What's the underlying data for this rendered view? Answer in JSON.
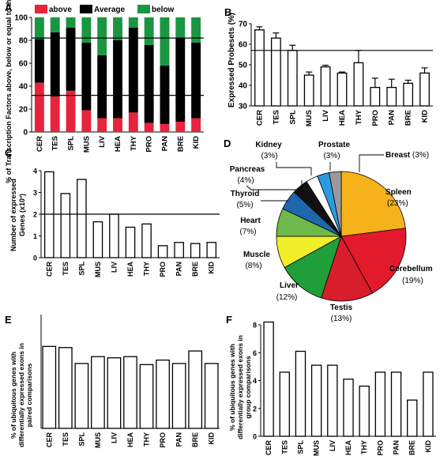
{
  "chart_data": [
    {
      "panel_letter": "A",
      "type": "bar",
      "stacked": true,
      "categories": [
        "CER",
        "TES",
        "SPL",
        "MUS",
        "LIV",
        "HEA",
        "THY",
        "PRO",
        "PAN",
        "BRE",
        "KID"
      ],
      "series": [
        {
          "name": "above",
          "color": "#e8243c",
          "values": [
            43,
            31,
            36,
            19,
            12,
            12,
            17,
            8,
            7,
            9,
            12
          ]
        },
        {
          "name": "Average",
          "color": "#000000",
          "values": [
            38,
            56,
            55,
            59,
            55,
            68,
            74,
            68,
            51,
            73,
            66
          ]
        },
        {
          "name": "below",
          "color": "#1a9641",
          "values": [
            19,
            13,
            9,
            22,
            33,
            20,
            9,
            24,
            42,
            18,
            22
          ]
        }
      ],
      "ylabel": "% of Transcription Factors above, below or equal to the average",
      "ylim": [
        0,
        100
      ],
      "yticks": [
        0,
        20,
        40,
        60,
        80,
        100
      ],
      "reference_lines": [
        82,
        32
      ],
      "legend_position": "top"
    },
    {
      "panel_letter": "B",
      "type": "bar",
      "categories": [
        "CER",
        "TES",
        "SPL",
        "MUS",
        "LIV",
        "HEA",
        "THY",
        "PRO",
        "PAN",
        "BRE",
        "KID"
      ],
      "values": [
        67,
        63,
        57,
        45,
        49,
        46,
        51,
        39,
        39,
        41,
        46
      ],
      "errors": [
        1.5,
        2.5,
        2.5,
        1.5,
        0.8,
        0.5,
        6,
        4.5,
        4,
        1.5,
        2.5
      ],
      "ylabel": "Expressed Probesets (%)",
      "ylim": [
        30,
        70
      ],
      "yticks": [
        30,
        40,
        50,
        60,
        70
      ],
      "reference_line": 57
    },
    {
      "panel_letter": "C",
      "type": "bar",
      "categories": [
        "CER",
        "TES",
        "SPL",
        "MUS",
        "LIV",
        "HEA",
        "THY",
        "PRO",
        "PAN",
        "BRE",
        "KID"
      ],
      "values": [
        3.95,
        2.95,
        3.6,
        1.65,
        2.0,
        1.4,
        1.55,
        0.55,
        0.7,
        0.65,
        0.7
      ],
      "ylabel_line1": "Number of expressed",
      "ylabel_line2": "Genes (x10³)",
      "ylim": [
        0,
        4
      ],
      "yticks": [
        0,
        1,
        2,
        3,
        4
      ],
      "reference_line": 2
    },
    {
      "panel_letter": "D",
      "type": "pie",
      "slices": [
        {
          "label": "Spleen",
          "pct_label": "(23%)",
          "value": 23,
          "color": "#f5b21a"
        },
        {
          "label": "Cerebellum",
          "pct_label": "(19%)",
          "value": 19,
          "color": "#e31a2b"
        },
        {
          "label": "Testis",
          "pct_label": "(13%)",
          "value": 13,
          "color": "#d81e2c"
        },
        {
          "label": "Liver",
          "pct_label": "(12%)",
          "value": 12,
          "color": "#1f9e3a"
        },
        {
          "label": "Muscle",
          "pct_label": "(8%)",
          "value": 8,
          "color": "#f1ee2a"
        },
        {
          "label": "Heart",
          "pct_label": "(7%)",
          "value": 7,
          "color": "#6fb84a"
        },
        {
          "label": "Thyroid",
          "pct_label": "(5%)",
          "value": 5,
          "color": "#1d67ad"
        },
        {
          "label": "Pancreas",
          "pct_label": "(4%)",
          "value": 4,
          "color": "#111111"
        },
        {
          "label": "Kidney",
          "pct_label": "(3%)",
          "value": 3,
          "color": "#ffffff"
        },
        {
          "label": "Prostate",
          "pct_label": "(3%)",
          "value": 3,
          "color": "#2b9be0"
        },
        {
          "label": "Breast",
          "pct_label": "(3%)",
          "value": 3,
          "color": "#9a9a9a"
        }
      ]
    },
    {
      "panel_letter": "E",
      "type": "bar",
      "categories": [
        "CER",
        "TES",
        "SPL",
        "MUS",
        "LIV",
        "HEA",
        "THY",
        "PRO",
        "PAN",
        "BRE",
        "KID"
      ],
      "values": [
        72,
        71,
        57,
        63,
        62,
        63,
        56,
        60,
        57,
        68,
        57
      ],
      "ylabel_line1": "% of ubiquitous genes with",
      "ylabel_line2": "differentially expressed exons in",
      "ylabel_line3": "paired comparisons",
      "ylim": [
        0,
        100
      ],
      "yticks": []
    },
    {
      "panel_letter": "F",
      "type": "bar",
      "categories": [
        "CER",
        "TES",
        "SPL",
        "MUS",
        "LIV",
        "HEA",
        "THY",
        "PRO",
        "PAN",
        "BRE",
        "KID"
      ],
      "values": [
        8.2,
        4.6,
        6.1,
        5.1,
        5.1,
        4.1,
        3.6,
        4.6,
        4.6,
        2.6,
        4.6
      ],
      "ylabel_line1": "% of ubiquitous genes with",
      "ylabel_line2": "differentially expressed exons in",
      "ylabel_line3": "group comparisons",
      "ylim": [
        0,
        8
      ],
      "yticks": [
        0,
        2,
        4,
        6,
        8
      ]
    }
  ]
}
